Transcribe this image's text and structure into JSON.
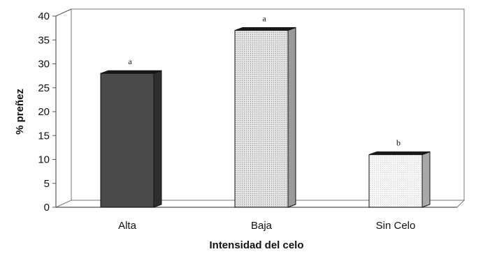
{
  "chart_data": {
    "type": "bar",
    "title": "",
    "xlabel": "Intensidad del celo",
    "ylabel": "% preñez",
    "categories": [
      "Alta",
      "Baja",
      "Sin Celo"
    ],
    "values": [
      28,
      37,
      11
    ],
    "annotations": [
      "a",
      "a",
      "b"
    ],
    "ylim": [
      0,
      40
    ],
    "yticks": [
      "0",
      "5",
      "10",
      "15",
      "20",
      "25",
      "30",
      "35",
      "40"
    ],
    "grid": false,
    "legend": "none",
    "colors": {
      "bar_fills": [
        "#4a4a4a",
        "#d6d6d6",
        "#f2f2f2"
      ],
      "bar_sides": [
        "#2e2e2e",
        "#9a9a9a",
        "#a8a8a8"
      ],
      "axis": "#555555"
    }
  }
}
